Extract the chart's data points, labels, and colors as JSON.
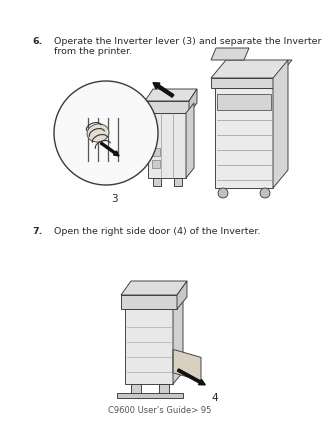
{
  "bg_color": "#ffffff",
  "step6_bold": "6.",
  "step6_text": "Operate the Inverter lever (3) and separate the Inverter\nfrom the printer.",
  "step7_bold": "7.",
  "step7_text": "Open the right side door (4) of the Inverter.",
  "footer_text": "C9600 User’s Guide> 95",
  "text_fontsize": 6.8,
  "footer_fontsize": 6.0,
  "text_color": "#2a2a2a",
  "footer_color": "#555555",
  "label3_text": "3",
  "label4_text": "4",
  "label_fontsize": 7.5
}
